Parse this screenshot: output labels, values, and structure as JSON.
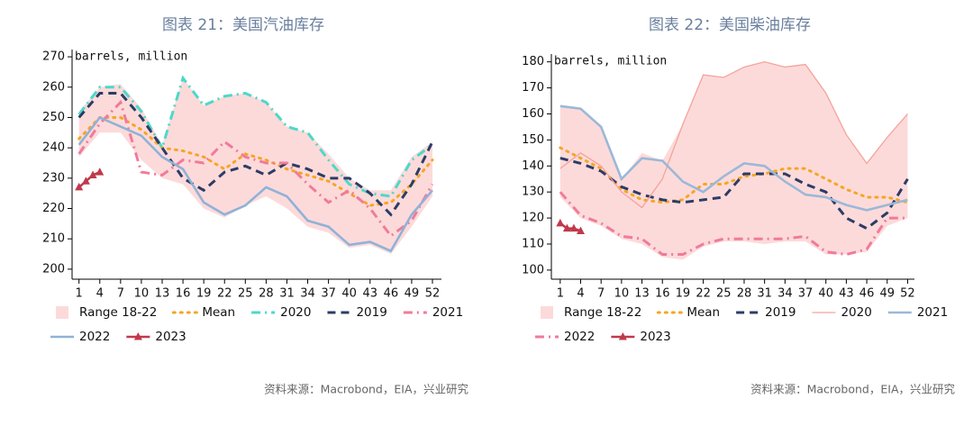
{
  "chart_data": [
    {
      "type": "line",
      "title": "图表 21：美国汽油库存",
      "annotation": "barrels, million",
      "source": "资料来源：Macrobond，EIA，兴业研究",
      "x": [
        1,
        4,
        7,
        10,
        13,
        16,
        19,
        22,
        25,
        28,
        31,
        34,
        37,
        40,
        43,
        46,
        49,
        52
      ],
      "xlim": [
        0,
        53.3
      ],
      "xticks": [
        1,
        4,
        7,
        10,
        13,
        16,
        19,
        22,
        25,
        28,
        31,
        34,
        37,
        40,
        43,
        46,
        49,
        52
      ],
      "ylim": [
        196.7,
        272.4
      ],
      "yticks": [
        200,
        210,
        220,
        230,
        240,
        250,
        260,
        270
      ],
      "series": [
        {
          "name": "Range 18-22",
          "style": "band",
          "color": "#fddada",
          "low": [
            237,
            245,
            245,
            236,
            230,
            228,
            220,
            217,
            221,
            224,
            220,
            214,
            212,
            207,
            208,
            205,
            214,
            224
          ],
          "high": [
            252,
            260,
            261,
            253,
            241,
            263,
            254,
            257,
            258,
            255,
            247,
            245,
            238,
            230,
            226,
            226,
            237,
            242
          ]
        },
        {
          "name": "Mean",
          "style": "dotted",
          "color": "#f5a623",
          "values": [
            243,
            250,
            250,
            246,
            240,
            239,
            237,
            233,
            238,
            236,
            233,
            231,
            229,
            225,
            221,
            222,
            228,
            236
          ]
        },
        {
          "name": "2020",
          "style": "dashdot",
          "color": "#4dd8c8",
          "values": [
            251,
            260,
            260,
            252,
            240,
            263,
            254,
            257,
            258,
            255,
            247,
            245,
            236,
            228,
            225,
            224,
            236,
            241
          ]
        },
        {
          "name": "2019",
          "style": "dashed",
          "color": "#2c3c66",
          "values": [
            250,
            258,
            258,
            250,
            240,
            230,
            226,
            232,
            234,
            231,
            235,
            233,
            230,
            230,
            225,
            218,
            228,
            242
          ]
        },
        {
          "name": "2021",
          "style": "dashdot",
          "color": "#f07b9b",
          "values": [
            238,
            248,
            255,
            232,
            231,
            236,
            235,
            242,
            237,
            235,
            235,
            228,
            222,
            226,
            220,
            211,
            216,
            228
          ]
        },
        {
          "name": "2022",
          "style": "solid",
          "color": "#8fb2d8",
          "values": [
            241,
            250,
            247,
            244,
            237,
            233,
            222,
            218,
            221,
            227,
            224,
            216,
            214,
            208,
            209,
            206,
            218,
            226
          ]
        },
        {
          "name": "2023",
          "style": "solid",
          "marker": "triangle",
          "color": "#c0394b",
          "x": [
            1,
            2,
            3,
            4
          ],
          "values": [
            227,
            229,
            231,
            232
          ]
        }
      ]
    },
    {
      "type": "line",
      "title": "图表 22：美国柴油库存",
      "annotation": "barrels, million",
      "source": "资料来源：Macrobond，EIA，兴业研究",
      "x": [
        1,
        4,
        7,
        10,
        13,
        16,
        19,
        22,
        25,
        28,
        31,
        34,
        37,
        40,
        43,
        46,
        49,
        52
      ],
      "xlim": [
        -0.3,
        53
      ],
      "xticks": [
        1,
        4,
        7,
        10,
        13,
        16,
        19,
        22,
        25,
        28,
        31,
        34,
        37,
        40,
        43,
        46,
        49,
        52
      ],
      "ylim": [
        96.5,
        183
      ],
      "yticks": [
        100,
        110,
        120,
        130,
        140,
        150,
        160,
        170,
        180
      ],
      "series": [
        {
          "name": "Range 18-22",
          "style": "band",
          "color": "#fddada",
          "low": [
            128,
            120,
            117,
            112,
            110,
            105,
            104,
            109,
            111,
            111,
            110,
            111,
            111,
            106,
            106,
            107,
            117,
            120
          ],
          "high": [
            163,
            162,
            155,
            135,
            145,
            142,
            156,
            175,
            174,
            178,
            180,
            178,
            179,
            168,
            152,
            141,
            151,
            160
          ]
        },
        {
          "name": "Mean",
          "style": "dotted",
          "color": "#f5a623",
          "values": [
            147,
            143,
            139,
            131,
            127,
            126,
            127,
            133,
            133,
            136,
            137,
            139,
            139,
            135,
            131,
            128,
            128,
            126
          ]
        },
        {
          "name": "2019",
          "style": "dashed",
          "color": "#2c3c66",
          "values": [
            143,
            141,
            138,
            132,
            129,
            127,
            126,
            127,
            128,
            137,
            137,
            137,
            133,
            130,
            120,
            116,
            122,
            135
          ]
        },
        {
          "name": "2020",
          "style": "thin",
          "color": "#f4a39a",
          "values": [
            139,
            145,
            140,
            130,
            124,
            135,
            156,
            175,
            174,
            178,
            180,
            178,
            179,
            168,
            152,
            141,
            151,
            160
          ]
        },
        {
          "name": "2021",
          "style": "solid",
          "color": "#9bb8d8",
          "values": [
            163,
            162,
            155,
            135,
            143,
            142,
            134,
            130,
            136,
            141,
            140,
            134,
            129,
            128,
            125,
            123,
            125,
            127
          ]
        },
        {
          "name": "2022",
          "style": "dashdot",
          "color": "#f07b9b",
          "values": [
            130,
            121,
            118,
            113,
            112,
            106,
            106,
            110,
            112,
            112,
            112,
            112,
            113,
            107,
            106,
            108,
            120,
            120
          ]
        },
        {
          "name": "2023",
          "style": "solid",
          "marker": "triangle",
          "color": "#c0394b",
          "x": [
            1,
            2,
            3,
            4
          ],
          "values": [
            118,
            116,
            116,
            115
          ]
        }
      ]
    }
  ]
}
